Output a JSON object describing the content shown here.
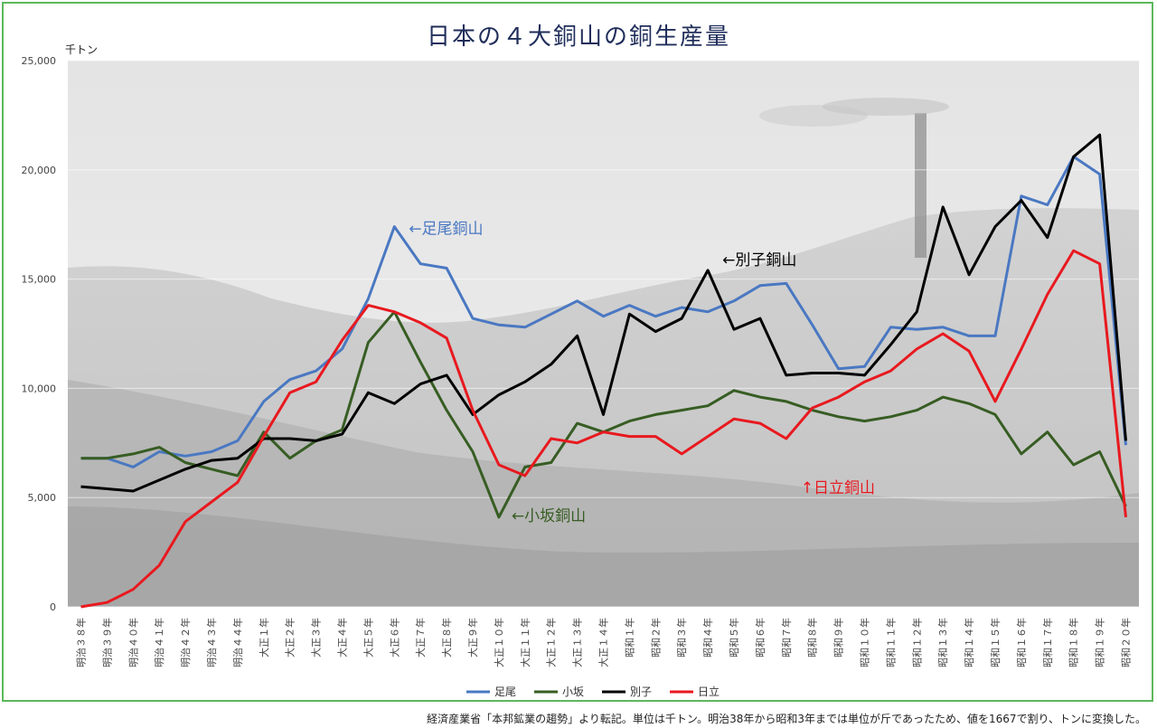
{
  "title": "日本の４大銅山の銅生産量",
  "unit_label": "千トン",
  "source_note": "経済産業省「本邦鉱業の趨勢」より転記。単位は千トン。明治38年から昭和3年までは単位が斤であったため、値を1667で割り、トンに変換した。",
  "colors": {
    "frame": "#5cb85c",
    "title": "#1f2d5a",
    "ashio": "#4a78c2",
    "kosaka": "#375d23",
    "besshi": "#000000",
    "hitachi": "#e8191f"
  },
  "annotations": [
    {
      "text": "←足尾銅山",
      "series": "足尾",
      "color": "#4a78c2"
    },
    {
      "text": "←別子銅山",
      "series": "別子",
      "color": "#000000"
    },
    {
      "text": "↑日立銅山",
      "series": "日立",
      "color": "#e8191f"
    },
    {
      "text": "←小坂銅山",
      "series": "小坂",
      "color": "#375d23"
    }
  ],
  "chart_data": {
    "type": "line",
    "title": "日本の４大銅山の銅生産量",
    "ylabel": "千トン",
    "ylim": [
      0,
      25000
    ],
    "yticks": [
      "0",
      "5,000",
      "10,000",
      "15,000",
      "20,000",
      "25,000"
    ],
    "grid": true,
    "legend_position": "bottom",
    "categories": [
      "明治３８年",
      "明治３９年",
      "明治４０年",
      "明治４１年",
      "明治４２年",
      "明治４３年",
      "明治４４年",
      "大正１年",
      "大正２年",
      "大正３年",
      "大正４年",
      "大正５年",
      "大正６年",
      "大正７年",
      "大正８年",
      "大正９年",
      "大正１０年",
      "大正１１年",
      "大正１２年",
      "大正１３年",
      "大正１４年",
      "昭和１年",
      "昭和２年",
      "昭和３年",
      "昭和４年",
      "昭和５年",
      "昭和６年",
      "昭和７年",
      "昭和８年",
      "昭和９年",
      "昭和１０年",
      "昭和１１年",
      "昭和１２年",
      "昭和１３年",
      "昭和１４年",
      "昭和１５年",
      "昭和１６年",
      "昭和１７年",
      "昭和１８年",
      "昭和１９年",
      "昭和２０年"
    ],
    "series": [
      {
        "name": "足尾",
        "color": "#4a78c2",
        "values": [
          6800,
          6800,
          6400,
          7100,
          6900,
          7100,
          7600,
          9400,
          10400,
          10800,
          11800,
          14100,
          17400,
          15700,
          15500,
          13200,
          12900,
          12800,
          13400,
          14000,
          13300,
          13800,
          13300,
          13700,
          13500,
          14000,
          14700,
          14800,
          12900,
          10900,
          11000,
          12800,
          12700,
          12800,
          12400,
          12400,
          18800,
          18400,
          20600,
          19800,
          7400
        ]
      },
      {
        "name": "小坂",
        "color": "#375d23",
        "values": [
          6800,
          6800,
          7000,
          7300,
          6600,
          6300,
          6000,
          8000,
          6800,
          7600,
          8100,
          12100,
          13500,
          11200,
          9000,
          7100,
          4100,
          6400,
          6600,
          8400,
          8000,
          8500,
          8800,
          9000,
          9200,
          9900,
          9600,
          9400,
          9000,
          8700,
          8500,
          8700,
          9000,
          9600,
          9300,
          8800,
          7000,
          8000,
          6500,
          7100,
          4600
        ]
      },
      {
        "name": "別子",
        "color": "#000000",
        "values": [
          5500,
          5400,
          5300,
          5800,
          6300,
          6700,
          6800,
          7700,
          7700,
          7600,
          7900,
          9800,
          9300,
          10200,
          10600,
          8800,
          9700,
          10300,
          11100,
          12400,
          8800,
          13400,
          12600,
          13200,
          15400,
          12700,
          13200,
          10600,
          10700,
          10700,
          10600,
          12000,
          13500,
          18300,
          15200,
          17400,
          18600,
          16900,
          20600,
          21600,
          7600
        ]
      },
      {
        "name": "日立",
        "color": "#e8191f",
        "values": [
          0,
          200,
          800,
          1900,
          3900,
          4800,
          5700,
          7800,
          9800,
          10300,
          12200,
          13800,
          13500,
          13000,
          12300,
          9000,
          6500,
          6000,
          7700,
          7500,
          8000,
          7800,
          7800,
          7000,
          7800,
          8600,
          8400,
          7700,
          9100,
          9600,
          10300,
          10800,
          11800,
          12500,
          11700,
          9400,
          11800,
          14300,
          16300,
          15700,
          4100
        ]
      }
    ]
  }
}
